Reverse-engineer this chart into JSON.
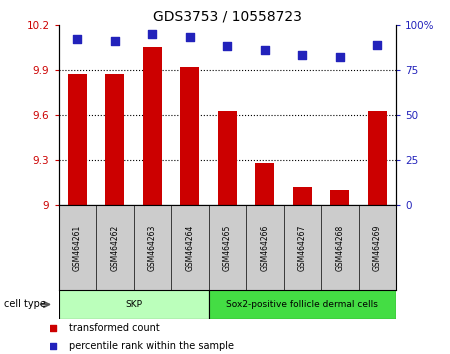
{
  "title": "GDS3753 / 10558723",
  "samples": [
    "GSM464261",
    "GSM464262",
    "GSM464263",
    "GSM464264",
    "GSM464265",
    "GSM464266",
    "GSM464267",
    "GSM464268",
    "GSM464269"
  ],
  "transformed_count": [
    9.87,
    9.87,
    10.05,
    9.92,
    9.63,
    9.28,
    9.12,
    9.1,
    9.63
  ],
  "percentile_rank": [
    92,
    91,
    95,
    93,
    88,
    86,
    83,
    82,
    89
  ],
  "ylim_left": [
    9.0,
    10.2
  ],
  "ylim_right": [
    0,
    100
  ],
  "yticks_left": [
    9.0,
    9.3,
    9.6,
    9.9,
    10.2
  ],
  "yticks_right": [
    0,
    25,
    50,
    75,
    100
  ],
  "ytick_labels_left": [
    "9",
    "9.3",
    "9.6",
    "9.9",
    "10.2"
  ],
  "ytick_labels_right": [
    "0",
    "25",
    "50",
    "75",
    "100%"
  ],
  "bar_color": "#cc0000",
  "dot_color": "#2222bb",
  "background_color": "#ffffff",
  "cell_type_groups": [
    {
      "label": "SKP",
      "start": 0,
      "end": 4,
      "color": "#bbffbb"
    },
    {
      "label": "Sox2-positive follicle dermal cells",
      "start": 4,
      "end": 9,
      "color": "#44dd44"
    }
  ],
  "cell_type_label": "cell type",
  "legend_items": [
    {
      "label": "transformed count",
      "color": "#cc0000"
    },
    {
      "label": "percentile rank within the sample",
      "color": "#2222bb"
    }
  ],
  "tick_color_left": "#cc0000",
  "tick_color_right": "#2222bb",
  "bar_width": 0.5,
  "dot_size": 30,
  "gridline_values": [
    9.3,
    9.6,
    9.9
  ]
}
